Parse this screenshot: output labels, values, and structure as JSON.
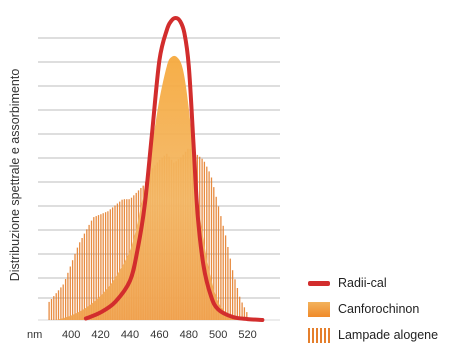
{
  "chart_data": {
    "type": "area",
    "title": "",
    "xlabel": "nm",
    "ylabel": "Distribuzione spettrale e assorbimento",
    "xlim": [
      372,
      542
    ],
    "ylim": [
      0,
      1.0
    ],
    "x_ticks": [
      "400",
      "420",
      "440",
      "460",
      "480",
      "500",
      "520"
    ],
    "grid": true,
    "legend": {
      "placement": "bottom-right",
      "items": [
        {
          "label": "Radii-cal",
          "style": "line",
          "color": "#d22d2d"
        },
        {
          "label": "Canforochinon",
          "style": "fill",
          "color": "#f4a94a"
        },
        {
          "label": "Lampade alogene",
          "style": "bars",
          "color": "#e57f2c"
        }
      ]
    },
    "series": [
      {
        "name": "Radii-cal",
        "style": "line",
        "color": "#d22d2d",
        "x": [
          410,
          420,
          430,
          440,
          445,
          450,
          455,
          460,
          465,
          468,
          471,
          474,
          477,
          480,
          483,
          486,
          490,
          495,
          500,
          510,
          520,
          530
        ],
        "y": [
          0.005,
          0.025,
          0.06,
          0.13,
          0.23,
          0.38,
          0.62,
          0.86,
          0.96,
          0.99,
          1.0,
          0.99,
          0.95,
          0.84,
          0.6,
          0.35,
          0.18,
          0.08,
          0.035,
          0.01,
          0.003,
          0.0
        ]
      },
      {
        "name": "Canforochinon",
        "style": "fill",
        "color": "#f4a94a",
        "x": [
          390,
          400,
          410,
          420,
          430,
          440,
          445,
          450,
          455,
          460,
          465,
          468,
          472,
          476,
          480,
          484,
          488,
          492,
          496,
          500,
          505,
          510,
          520,
          530
        ],
        "y": [
          0.0,
          0.015,
          0.04,
          0.08,
          0.14,
          0.23,
          0.32,
          0.44,
          0.58,
          0.73,
          0.84,
          0.87,
          0.87,
          0.83,
          0.7,
          0.5,
          0.33,
          0.21,
          0.12,
          0.06,
          0.025,
          0.01,
          0.0,
          0.0
        ]
      },
      {
        "name": "Lampade alogene",
        "style": "bars",
        "color": "#e57f2c",
        "x": [
          385,
          395,
          405,
          415,
          425,
          435,
          440,
          450,
          455,
          460,
          465,
          470,
          475,
          480,
          485,
          490,
          495,
          500,
          505,
          510,
          515,
          520
        ],
        "y": [
          0.06,
          0.12,
          0.25,
          0.34,
          0.36,
          0.4,
          0.4,
          0.45,
          0.5,
          0.53,
          0.55,
          0.52,
          0.54,
          0.57,
          0.55,
          0.53,
          0.48,
          0.38,
          0.28,
          0.16,
          0.07,
          0.02
        ]
      }
    ]
  }
}
